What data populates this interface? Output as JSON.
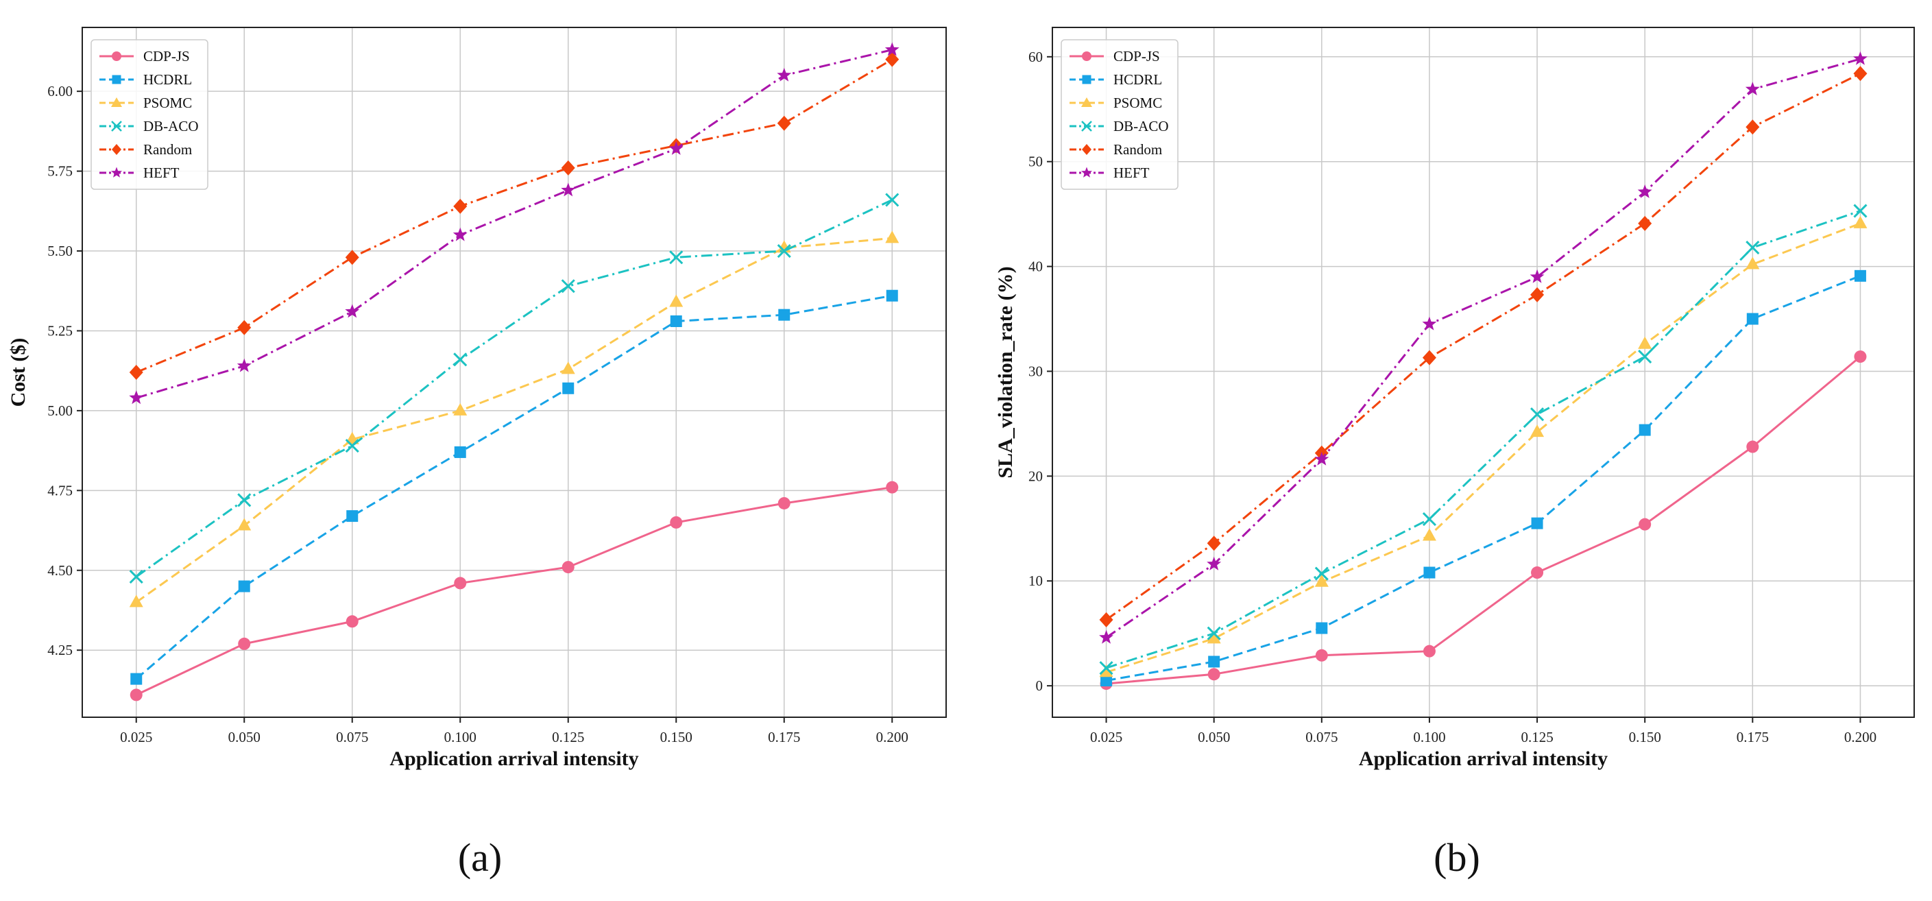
{
  "chart_data": [
    {
      "type": "line",
      "panel_label": "(a)",
      "xlabel": "Application arrival intensity",
      "ylabel": "Cost ($)",
      "x": [
        0.025,
        0.05,
        0.075,
        0.1,
        0.125,
        0.15,
        0.175,
        0.2
      ],
      "x_tick_labels": [
        "0.025",
        "0.050",
        "0.075",
        "0.100",
        "0.125",
        "0.150",
        "0.175",
        "0.200"
      ],
      "xlim": [
        0.0125,
        0.2125
      ],
      "ylim": [
        4.04,
        6.2
      ],
      "y_ticks": [
        4.25,
        4.5,
        4.75,
        5.0,
        5.25,
        5.5,
        5.75,
        6.0
      ],
      "y_tick_labels": [
        "4.25",
        "4.50",
        "4.75",
        "5.00",
        "5.25",
        "5.50",
        "5.75",
        "6.00"
      ],
      "grid": true,
      "legend_position": "top-left",
      "series": [
        {
          "name": "CDP-JS",
          "color": "#f0648c",
          "marker": "circle",
          "dash": "solid",
          "values": [
            4.11,
            4.27,
            4.34,
            4.46,
            4.51,
            4.65,
            4.71,
            4.76
          ]
        },
        {
          "name": "HCDRL",
          "color": "#18a3e6",
          "marker": "square",
          "dash": "dashed",
          "values": [
            4.16,
            4.45,
            4.67,
            4.87,
            5.07,
            5.28,
            5.3,
            5.36
          ]
        },
        {
          "name": "PSOMC",
          "color": "#fcc850",
          "marker": "triangle",
          "dash": "dashed",
          "values": [
            4.4,
            4.64,
            4.91,
            5.0,
            5.13,
            5.34,
            5.51,
            5.54
          ]
        },
        {
          "name": "DB-ACO",
          "color": "#1cc2c2",
          "marker": "x",
          "dash": "dashdot",
          "values": [
            4.48,
            4.72,
            4.89,
            5.16,
            5.39,
            5.48,
            5.5,
            5.66
          ]
        },
        {
          "name": "Random",
          "color": "#f2440c",
          "marker": "diamond",
          "dash": "dashdot",
          "values": [
            5.12,
            5.26,
            5.48,
            5.64,
            5.76,
            5.83,
            5.9,
            6.1
          ]
        },
        {
          "name": "HEFT",
          "color": "#aa14aa",
          "marker": "star",
          "dash": "dashdot",
          "values": [
            5.04,
            5.14,
            5.31,
            5.55,
            5.69,
            5.82,
            6.05,
            6.13
          ]
        }
      ]
    },
    {
      "type": "line",
      "panel_label": "(b)",
      "xlabel": "Application arrival intensity",
      "ylabel": "SLA_violation_rate (%)",
      "x": [
        0.025,
        0.05,
        0.075,
        0.1,
        0.125,
        0.15,
        0.175,
        0.2
      ],
      "x_tick_labels": [
        "0.025",
        "0.050",
        "0.075",
        "0.100",
        "0.125",
        "0.150",
        "0.175",
        "0.200"
      ],
      "xlim": [
        0.0125,
        0.2125
      ],
      "ylim": [
        -3.0,
        62.8
      ],
      "y_ticks": [
        0,
        10,
        20,
        30,
        40,
        50,
        60
      ],
      "y_tick_labels": [
        "0",
        "10",
        "20",
        "30",
        "40",
        "50",
        "60"
      ],
      "grid": true,
      "legend_position": "top-left",
      "series": [
        {
          "name": "CDP-JS",
          "color": "#f0648c",
          "marker": "circle",
          "dash": "solid",
          "values": [
            0.2,
            1.1,
            2.9,
            3.3,
            10.8,
            15.4,
            22.8,
            31.4
          ]
        },
        {
          "name": "HCDRL",
          "color": "#18a3e6",
          "marker": "square",
          "dash": "dashed",
          "values": [
            0.5,
            2.3,
            5.5,
            10.8,
            15.5,
            24.4,
            35.0,
            39.1
          ]
        },
        {
          "name": "PSOMC",
          "color": "#fcc850",
          "marker": "triangle",
          "dash": "dashed",
          "values": [
            1.3,
            4.5,
            9.9,
            14.3,
            24.2,
            32.6,
            40.2,
            44.1
          ]
        },
        {
          "name": "DB-ACO",
          "color": "#1cc2c2",
          "marker": "x",
          "dash": "dashdot",
          "values": [
            1.7,
            5.0,
            10.7,
            15.9,
            25.9,
            31.4,
            41.8,
            45.3
          ]
        },
        {
          "name": "Random",
          "color": "#f2440c",
          "marker": "diamond",
          "dash": "dashdot",
          "values": [
            6.3,
            13.6,
            22.2,
            31.3,
            37.3,
            44.1,
            53.3,
            58.4
          ]
        },
        {
          "name": "HEFT",
          "color": "#aa14aa",
          "marker": "star",
          "dash": "dashdot",
          "values": [
            4.6,
            11.6,
            21.6,
            34.5,
            39.0,
            47.1,
            56.9,
            59.8
          ]
        }
      ]
    }
  ]
}
